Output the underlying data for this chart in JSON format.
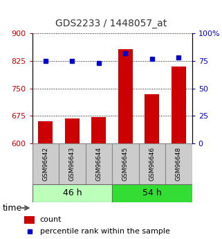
{
  "title": "GDS2233 / 1448057_at",
  "samples": [
    "GSM96642",
    "GSM96643",
    "GSM96644",
    "GSM96645",
    "GSM96646",
    "GSM96648"
  ],
  "counts": [
    660,
    668,
    672,
    858,
    735,
    810
  ],
  "percentiles": [
    75,
    75,
    73,
    82,
    77,
    78
  ],
  "groups": [
    {
      "label": "46 h",
      "indices": [
        0,
        1,
        2
      ]
    },
    {
      "label": "54 h",
      "indices": [
        3,
        4,
        5
      ]
    }
  ],
  "ylim_left": [
    600,
    900
  ],
  "ylim_right": [
    0,
    100
  ],
  "yticks_left": [
    600,
    675,
    750,
    825,
    900
  ],
  "yticks_right": [
    0,
    25,
    50,
    75,
    100
  ],
  "ytick_labels_right": [
    "0",
    "25",
    "50",
    "75",
    "100%"
  ],
  "bar_color": "#cc0000",
  "dot_color": "#0000cc",
  "grid_color": "#000000",
  "bar_width": 0.55,
  "label_color_left": "#cc0000",
  "label_color_right": "#0000cc",
  "title_color": "#333333",
  "group_bg_light": "#bbffbb",
  "group_bg_dark": "#33dd33",
  "sample_box_color": "#cccccc",
  "legend_bar_label": "count",
  "legend_dot_label": "percentile rank within the sample",
  "time_label": "time"
}
